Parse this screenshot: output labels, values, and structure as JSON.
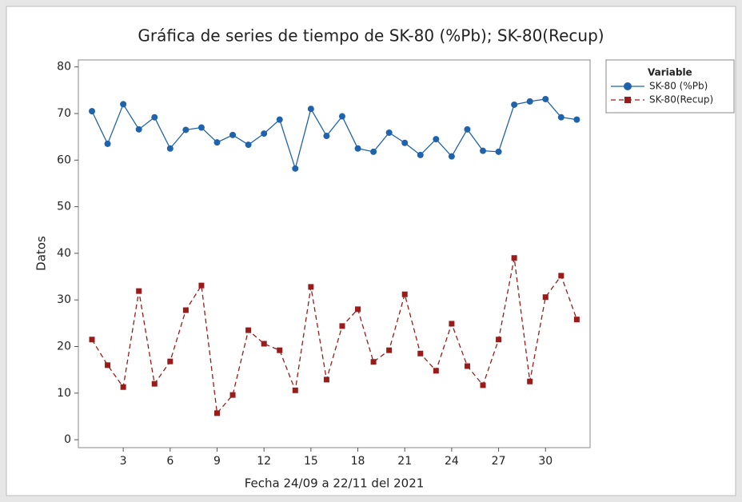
{
  "chart_data": {
    "type": "line",
    "title": "Gráfica de series de tiempo de SK-80 (%Pb); SK-80(Recup)",
    "x_label": "Fecha 24/09 a 22/11 del 2021",
    "y_label": "Datos",
    "legend_title": "Variable",
    "legend": "right",
    "x": [
      1,
      2,
      3,
      4,
      5,
      6,
      7,
      8,
      9,
      10,
      11,
      12,
      13,
      14,
      15,
      16,
      17,
      18,
      19,
      20,
      21,
      22,
      23,
      24,
      25,
      26,
      27,
      28,
      29,
      30,
      31,
      32
    ],
    "series": [
      {
        "name": "SK-80 (%Pb)",
        "color": "#1f63ac",
        "marker": "circle",
        "dash": "solid",
        "values": [
          70.5,
          63.5,
          72,
          66.6,
          69.2,
          62.5,
          66.5,
          67,
          63.8,
          65.4,
          63.3,
          65.7,
          68.7,
          58.2,
          71,
          65.2,
          69.4,
          62.5,
          61.8,
          65.9,
          63.7,
          61.1,
          64.5,
          60.8,
          66.6,
          62,
          61.8,
          71.9,
          72.6,
          73.1,
          69.2,
          68.7
        ]
      },
      {
        "name": "SK-80(Recup)",
        "color": "#9b1b1b",
        "marker": "square",
        "dash": "dashed",
        "values": [
          21.5,
          16,
          11.3,
          31.9,
          12,
          16.8,
          27.8,
          33.1,
          5.7,
          9.6,
          23.5,
          20.6,
          19.2,
          10.6,
          32.8,
          12.9,
          24.4,
          28,
          16.7,
          19.2,
          31.2,
          18.5,
          14.8,
          24.9,
          15.8,
          11.7,
          21.5,
          39,
          12.5,
          30.6,
          35.2,
          25.8
        ]
      }
    ],
    "xlim": [
      0.13,
      32.85
    ],
    "xticks": [
      3,
      6,
      9,
      12,
      15,
      18,
      21,
      24,
      27,
      30
    ],
    "ylim": [
      -1.7,
      81.5
    ],
    "yticks": [
      0,
      10,
      20,
      30,
      40,
      50,
      60,
      70,
      80
    ]
  }
}
